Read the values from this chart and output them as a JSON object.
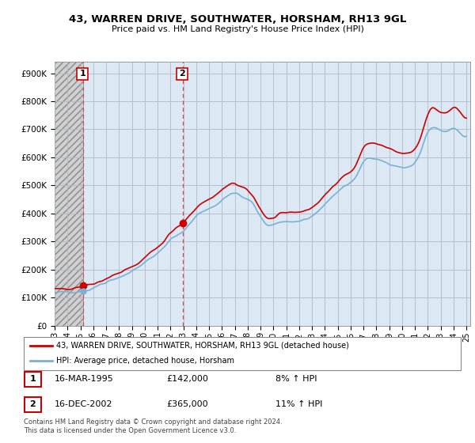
{
  "title": "43, WARREN DRIVE, SOUTHWATER, HORSHAM, RH13 9GL",
  "subtitle": "Price paid vs. HM Land Registry's House Price Index (HPI)",
  "ylabel_ticks": [
    "£0",
    "£100K",
    "£200K",
    "£300K",
    "£400K",
    "£500K",
    "£600K",
    "£700K",
    "£800K",
    "£900K"
  ],
  "ytick_values": [
    0,
    100000,
    200000,
    300000,
    400000,
    500000,
    600000,
    700000,
    800000,
    900000
  ],
  "ylim": [
    0,
    940000
  ],
  "xlim_start": 1993.0,
  "xlim_end": 2025.3,
  "sale1_year": 1995.21,
  "sale1_price": 142000,
  "sale2_year": 2002.96,
  "sale2_price": 365000,
  "sale1_date": "16-MAR-1995",
  "sale1_price_str": "£142,000",
  "sale1_hpi": "8% ↑ HPI",
  "sale2_date": "16-DEC-2002",
  "sale2_price_str": "£365,000",
  "sale2_hpi": "11% ↑ HPI",
  "red_color": "#cc0000",
  "blue_color": "#7ab0d4",
  "bg_color": "#dce9f5",
  "hatch_bg": "#c8c8c8",
  "grid_color": "#b0b8c8",
  "legend_label1": "43, WARREN DRIVE, SOUTHWATER, HORSHAM, RH13 9GL (detached house)",
  "legend_label2": "HPI: Average price, detached house, Horsham",
  "footer": "Contains HM Land Registry data © Crown copyright and database right 2024.\nThis data is licensed under the Open Government Licence v3.0."
}
